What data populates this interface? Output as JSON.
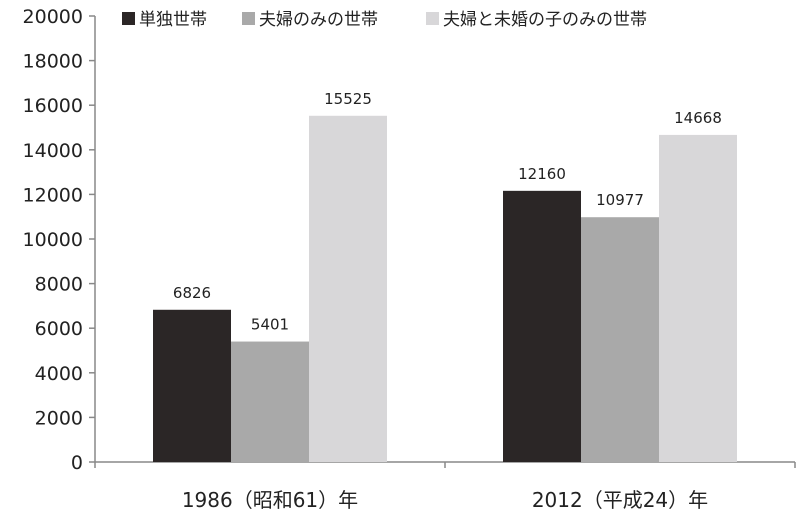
{
  "chart_data": {
    "type": "bar",
    "categories": [
      "1986（昭和61）年",
      "2012（平成24）年"
    ],
    "series": [
      {
        "name": "単独世帯",
        "values": [
          6826,
          12160
        ],
        "color": "#2b2626"
      },
      {
        "name": "夫婦のみの世帯",
        "values": [
          5401,
          10977
        ],
        "color": "#a9a9a9"
      },
      {
        "name": "夫婦と未婚の子のみの世帯",
        "values": [
          15525,
          14668
        ],
        "color": "#d8d7d9"
      }
    ],
    "title": "",
    "xlabel": "",
    "ylabel": "",
    "ylim": [
      0,
      20000
    ],
    "yticks": [
      0,
      2000,
      4000,
      6000,
      8000,
      10000,
      12000,
      14000,
      16000,
      18000,
      20000
    ],
    "grid": false,
    "legend_position": "top"
  }
}
